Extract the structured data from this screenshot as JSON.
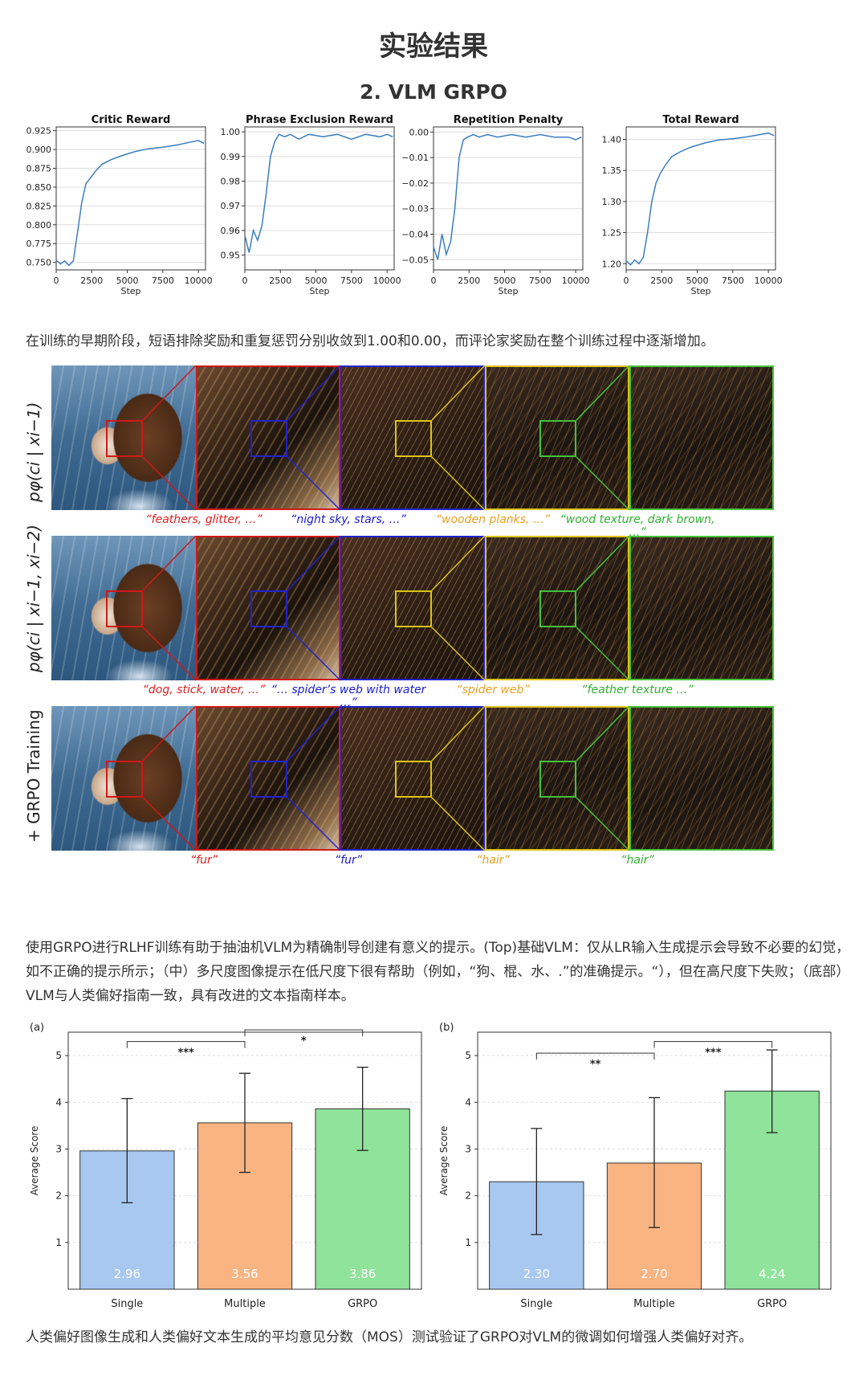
{
  "header": {
    "title": "实验结果",
    "section": "2. VLM GRPO"
  },
  "captions": {
    "training_curves": "在训练的早期阶段，短语排除奖励和重复惩罚分别收敛到1.00和0.00，而评论家奖励在整个训练过程中逐渐增加。",
    "prompt_examples": "使用GRPO进行RLHF训练有助于抽油机VLM为精确制导创建有意义的提示。(Top)基础VLM：仅从LR输入生成提示会导致不必要的幻觉，如不正确的提示所示；（中）多尺度图像提示在低尺度下很有帮助（例如，“狗、棍、水、.”的准确提示。“），但在高尺度下失败；（底部）VLM与人类偏好指南一致，具有改进的文本指南样本。",
    "mos": "人类偏好图像生成和人类偏好文本生成的平均意见分数（MOS）测试验证了GRPO对VLM的微调如何增强人类偏好对齐。"
  },
  "chart_data": [
    {
      "type": "line",
      "title": "Critic Reward",
      "xlabel": "Step",
      "ylabel": "",
      "x_ticks": [
        0,
        2500,
        5000,
        7500,
        10000
      ],
      "y_ticks": [
        0.75,
        0.775,
        0.8,
        0.825,
        0.85,
        0.875,
        0.9,
        0.925
      ],
      "y_tick_labels": [
        "0.750",
        "0.775",
        "0.800",
        "0.825",
        "0.850",
        "0.875",
        "0.900",
        "0.925"
      ],
      "xlim": [
        0,
        10500
      ],
      "ylim": [
        0.74,
        0.93
      ],
      "grid": "horizontal",
      "x": [
        0,
        300,
        600,
        900,
        1200,
        1500,
        1800,
        2100,
        2400,
        2800,
        3200,
        3800,
        4500,
        5500,
        6500,
        7500,
        8500,
        9500,
        10000,
        10400
      ],
      "y": [
        0.753,
        0.748,
        0.752,
        0.746,
        0.752,
        0.79,
        0.83,
        0.855,
        0.862,
        0.872,
        0.88,
        0.886,
        0.891,
        0.897,
        0.901,
        0.903,
        0.906,
        0.91,
        0.912,
        0.908
      ]
    },
    {
      "type": "line",
      "title": "Phrase Exclusion Reward",
      "xlabel": "Step",
      "ylabel": "",
      "x_ticks": [
        0,
        2500,
        5000,
        7500,
        10000
      ],
      "y_ticks": [
        0.95,
        0.96,
        0.97,
        0.98,
        0.99,
        1.0
      ],
      "y_tick_labels": [
        "0.95",
        "0.96",
        "0.97",
        "0.98",
        "0.99",
        "1.00"
      ],
      "xlim": [
        0,
        10500
      ],
      "ylim": [
        0.944,
        1.002
      ],
      "grid": "horizontal",
      "x": [
        0,
        300,
        600,
        900,
        1200,
        1500,
        1800,
        2100,
        2400,
        2800,
        3200,
        3800,
        4500,
        5500,
        6500,
        7500,
        8500,
        9500,
        10000,
        10400
      ],
      "y": [
        0.958,
        0.951,
        0.96,
        0.956,
        0.962,
        0.975,
        0.99,
        0.996,
        0.999,
        0.998,
        0.999,
        0.997,
        0.999,
        0.998,
        0.999,
        0.997,
        0.999,
        0.998,
        0.999,
        0.998
      ]
    },
    {
      "type": "line",
      "title": "Repetition Penalty",
      "xlabel": "Step",
      "ylabel": "",
      "x_ticks": [
        0,
        2500,
        5000,
        7500,
        10000
      ],
      "y_ticks": [
        -0.05,
        -0.04,
        -0.03,
        -0.02,
        -0.01,
        0.0
      ],
      "y_tick_labels": [
        "−0.05",
        "−0.04",
        "−0.03",
        "−0.02",
        "−0.01",
        "0.00"
      ],
      "xlim": [
        0,
        10500
      ],
      "ylim": [
        -0.054,
        0.002
      ],
      "grid": "horizontal",
      "x": [
        0,
        300,
        600,
        900,
        1200,
        1500,
        1800,
        2100,
        2400,
        2800,
        3200,
        3800,
        4500,
        5500,
        6500,
        7500,
        8500,
        9500,
        10000,
        10400
      ],
      "y": [
        -0.045,
        -0.05,
        -0.04,
        -0.048,
        -0.043,
        -0.03,
        -0.01,
        -0.003,
        -0.002,
        -0.001,
        -0.002,
        -0.001,
        -0.002,
        -0.001,
        -0.002,
        -0.001,
        -0.002,
        -0.002,
        -0.003,
        -0.002
      ]
    },
    {
      "type": "line",
      "title": "Total Reward",
      "xlabel": "Step",
      "ylabel": "",
      "x_ticks": [
        0,
        2500,
        5000,
        7500,
        10000
      ],
      "y_ticks": [
        1.2,
        1.25,
        1.3,
        1.35,
        1.4
      ],
      "y_tick_labels": [
        "1.20",
        "1.25",
        "1.30",
        "1.35",
        "1.40"
      ],
      "xlim": [
        0,
        10500
      ],
      "ylim": [
        1.19,
        1.42
      ],
      "grid": "horizontal",
      "x": [
        0,
        300,
        600,
        900,
        1200,
        1500,
        1800,
        2100,
        2400,
        2800,
        3200,
        3800,
        4500,
        5500,
        6500,
        7500,
        8500,
        9500,
        10000,
        10400
      ],
      "y": [
        1.205,
        1.198,
        1.206,
        1.2,
        1.21,
        1.25,
        1.3,
        1.33,
        1.345,
        1.36,
        1.372,
        1.38,
        1.387,
        1.394,
        1.399,
        1.401,
        1.404,
        1.408,
        1.41,
        1.406
      ]
    },
    {
      "type": "bar",
      "panel_label": "(a)",
      "ylabel": "Average Score",
      "ylim": [
        0,
        5.5
      ],
      "y_ticks": [
        1,
        2,
        3,
        4,
        5
      ],
      "categories": [
        "Single",
        "Multiple",
        "GRPO"
      ],
      "values": [
        2.96,
        3.56,
        3.86
      ],
      "value_labels": [
        "2.96",
        "3.56",
        "3.86"
      ],
      "error_low": [
        1.85,
        2.5,
        2.97
      ],
      "error_high": [
        4.08,
        4.62,
        4.75
      ],
      "colors": [
        "#a8c8f0",
        "#f9b482",
        "#8fe39a"
      ],
      "significance": [
        {
          "from": 0,
          "to": 1,
          "label": "***",
          "level": 5.3
        },
        {
          "from": 1,
          "to": 2,
          "label": "*",
          "level": 5.55
        }
      ]
    },
    {
      "type": "bar",
      "panel_label": "(b)",
      "ylabel": "Average Score",
      "ylim": [
        0,
        5.5
      ],
      "y_ticks": [
        1,
        2,
        3,
        4,
        5
      ],
      "categories": [
        "Single",
        "Multiple",
        "GRPO"
      ],
      "values": [
        2.3,
        2.7,
        4.24
      ],
      "value_labels": [
        "2.30",
        "2.70",
        "4.24"
      ],
      "error_low": [
        1.17,
        1.32,
        3.35
      ],
      "error_high": [
        3.44,
        4.1,
        5.12
      ],
      "colors": [
        "#a8c8f0",
        "#f9b482",
        "#8fe39a"
      ],
      "significance": [
        {
          "from": 0,
          "to": 1,
          "label": "**",
          "level": 5.05
        },
        {
          "from": 1,
          "to": 2,
          "label": "***",
          "level": 5.3
        }
      ]
    }
  ],
  "figure": {
    "rows": [
      {
        "side_label": "pφ(ci | xi−1)",
        "prompts": [
          "“feathers, glitter, …”",
          "“night sky, stars, …”",
          "“wooden planks, …”",
          "“wood texture, dark brown, …”"
        ]
      },
      {
        "side_label": "pφ(ci | xi−1, xi−2)",
        "prompts": [
          "“dog, stick, water, …”",
          "“… spider’s web with water …”",
          "“spider web”",
          "“feather texture …”"
        ]
      },
      {
        "side_label": "+ GRPO Training",
        "prompts": [
          "“fur”",
          "“fur”",
          "“hair”",
          "“hair”"
        ]
      }
    ],
    "prompt_colors": [
      "#e02020",
      "#1a1ad0",
      "#e8a020",
      "#2fb02f"
    ]
  }
}
